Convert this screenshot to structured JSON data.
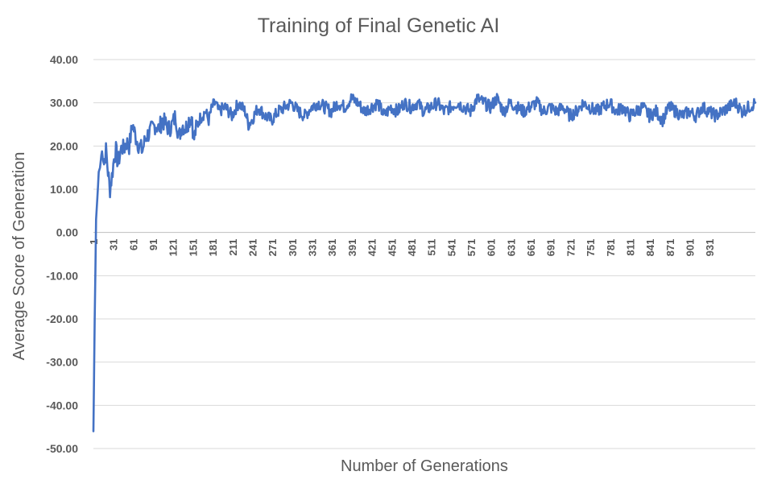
{
  "chart_data": {
    "type": "line",
    "title": "Training of Final Genetic AI",
    "xlabel": "Number of Generations",
    "ylabel": "Average Score of Generation",
    "x_start": 1,
    "x_end": 1000,
    "x_tick_labels": [
      "1",
      "31",
      "61",
      "91",
      "121",
      "151",
      "181",
      "211",
      "241",
      "271",
      "301",
      "331",
      "361",
      "391",
      "421",
      "451",
      "481",
      "511",
      "541",
      "571",
      "601",
      "631",
      "661",
      "691",
      "721",
      "751",
      "781",
      "811",
      "841",
      "871",
      "901",
      "931"
    ],
    "ylim": [
      -50,
      40
    ],
    "y_tick_labels": [
      "40.00",
      "30.00",
      "20.00",
      "10.00",
      "0.00",
      "-10.00",
      "-20.00",
      "-30.00",
      "-40.00",
      "-50.00"
    ],
    "y_ticks": [
      40,
      30,
      20,
      10,
      0,
      -10,
      -20,
      -30,
      -40,
      -50
    ],
    "grid": true,
    "legend": "none",
    "series_color": "#4472c4",
    "series": [
      {
        "name": "",
        "x": [
          1,
          3,
          5,
          7,
          9,
          11,
          13,
          15,
          17,
          20,
          23,
          26,
          29,
          32,
          35,
          38,
          41,
          44,
          47,
          50,
          55,
          60,
          65,
          70,
          75,
          80,
          85,
          90,
          95,
          100,
          105,
          110,
          115,
          120,
          125,
          130,
          135,
          140,
          145,
          150,
          152,
          156,
          160,
          165,
          170,
          175,
          180,
          185,
          190,
          200,
          210,
          220,
          230,
          235,
          240,
          250,
          260,
          270,
          280,
          290,
          300,
          310,
          320,
          330,
          340,
          350,
          360,
          370,
          380,
          390,
          400,
          410,
          420,
          430,
          440,
          450,
          460,
          470,
          480,
          490,
          500,
          510,
          520,
          530,
          540,
          550,
          560,
          570,
          580,
          590,
          600,
          610,
          620,
          630,
          640,
          650,
          660,
          670,
          680,
          690,
          700,
          710,
          720,
          730,
          740,
          750,
          760,
          770,
          780,
          790,
          800,
          810,
          820,
          830,
          840,
          850,
          860,
          870,
          880,
          890,
          900,
          910,
          920,
          930,
          940,
          950,
          960,
          970,
          980,
          990,
          1000
        ],
        "y": [
          -46,
          -20,
          3,
          8,
          14,
          15,
          18,
          19,
          16,
          19,
          14,
          10,
          13,
          17,
          19,
          16,
          18,
          20,
          19,
          21,
          20,
          25,
          22,
          20,
          19,
          22,
          23,
          24,
          25,
          24,
          26,
          25,
          24,
          25,
          27,
          22,
          25,
          24,
          26,
          27,
          21,
          24,
          26,
          27,
          28,
          26,
          29,
          30,
          28,
          29,
          27,
          30,
          28,
          25,
          26,
          29,
          27,
          26,
          28,
          29,
          30,
          28,
          27,
          29,
          30,
          29,
          28,
          30,
          29,
          31,
          30,
          28,
          29,
          30,
          27,
          29,
          28,
          30,
          29,
          30,
          28,
          29,
          30,
          28,
          29,
          30,
          29,
          28,
          31,
          30,
          29,
          31,
          28,
          30,
          29,
          28,
          29,
          30,
          28,
          29,
          28,
          29,
          27,
          28,
          30,
          29,
          28,
          29,
          30,
          28,
          29,
          27,
          28,
          29,
          27,
          28,
          26,
          29,
          28,
          27,
          28,
          27,
          29,
          28,
          27,
          28,
          29,
          30,
          28,
          29,
          30
        ]
      }
    ]
  }
}
